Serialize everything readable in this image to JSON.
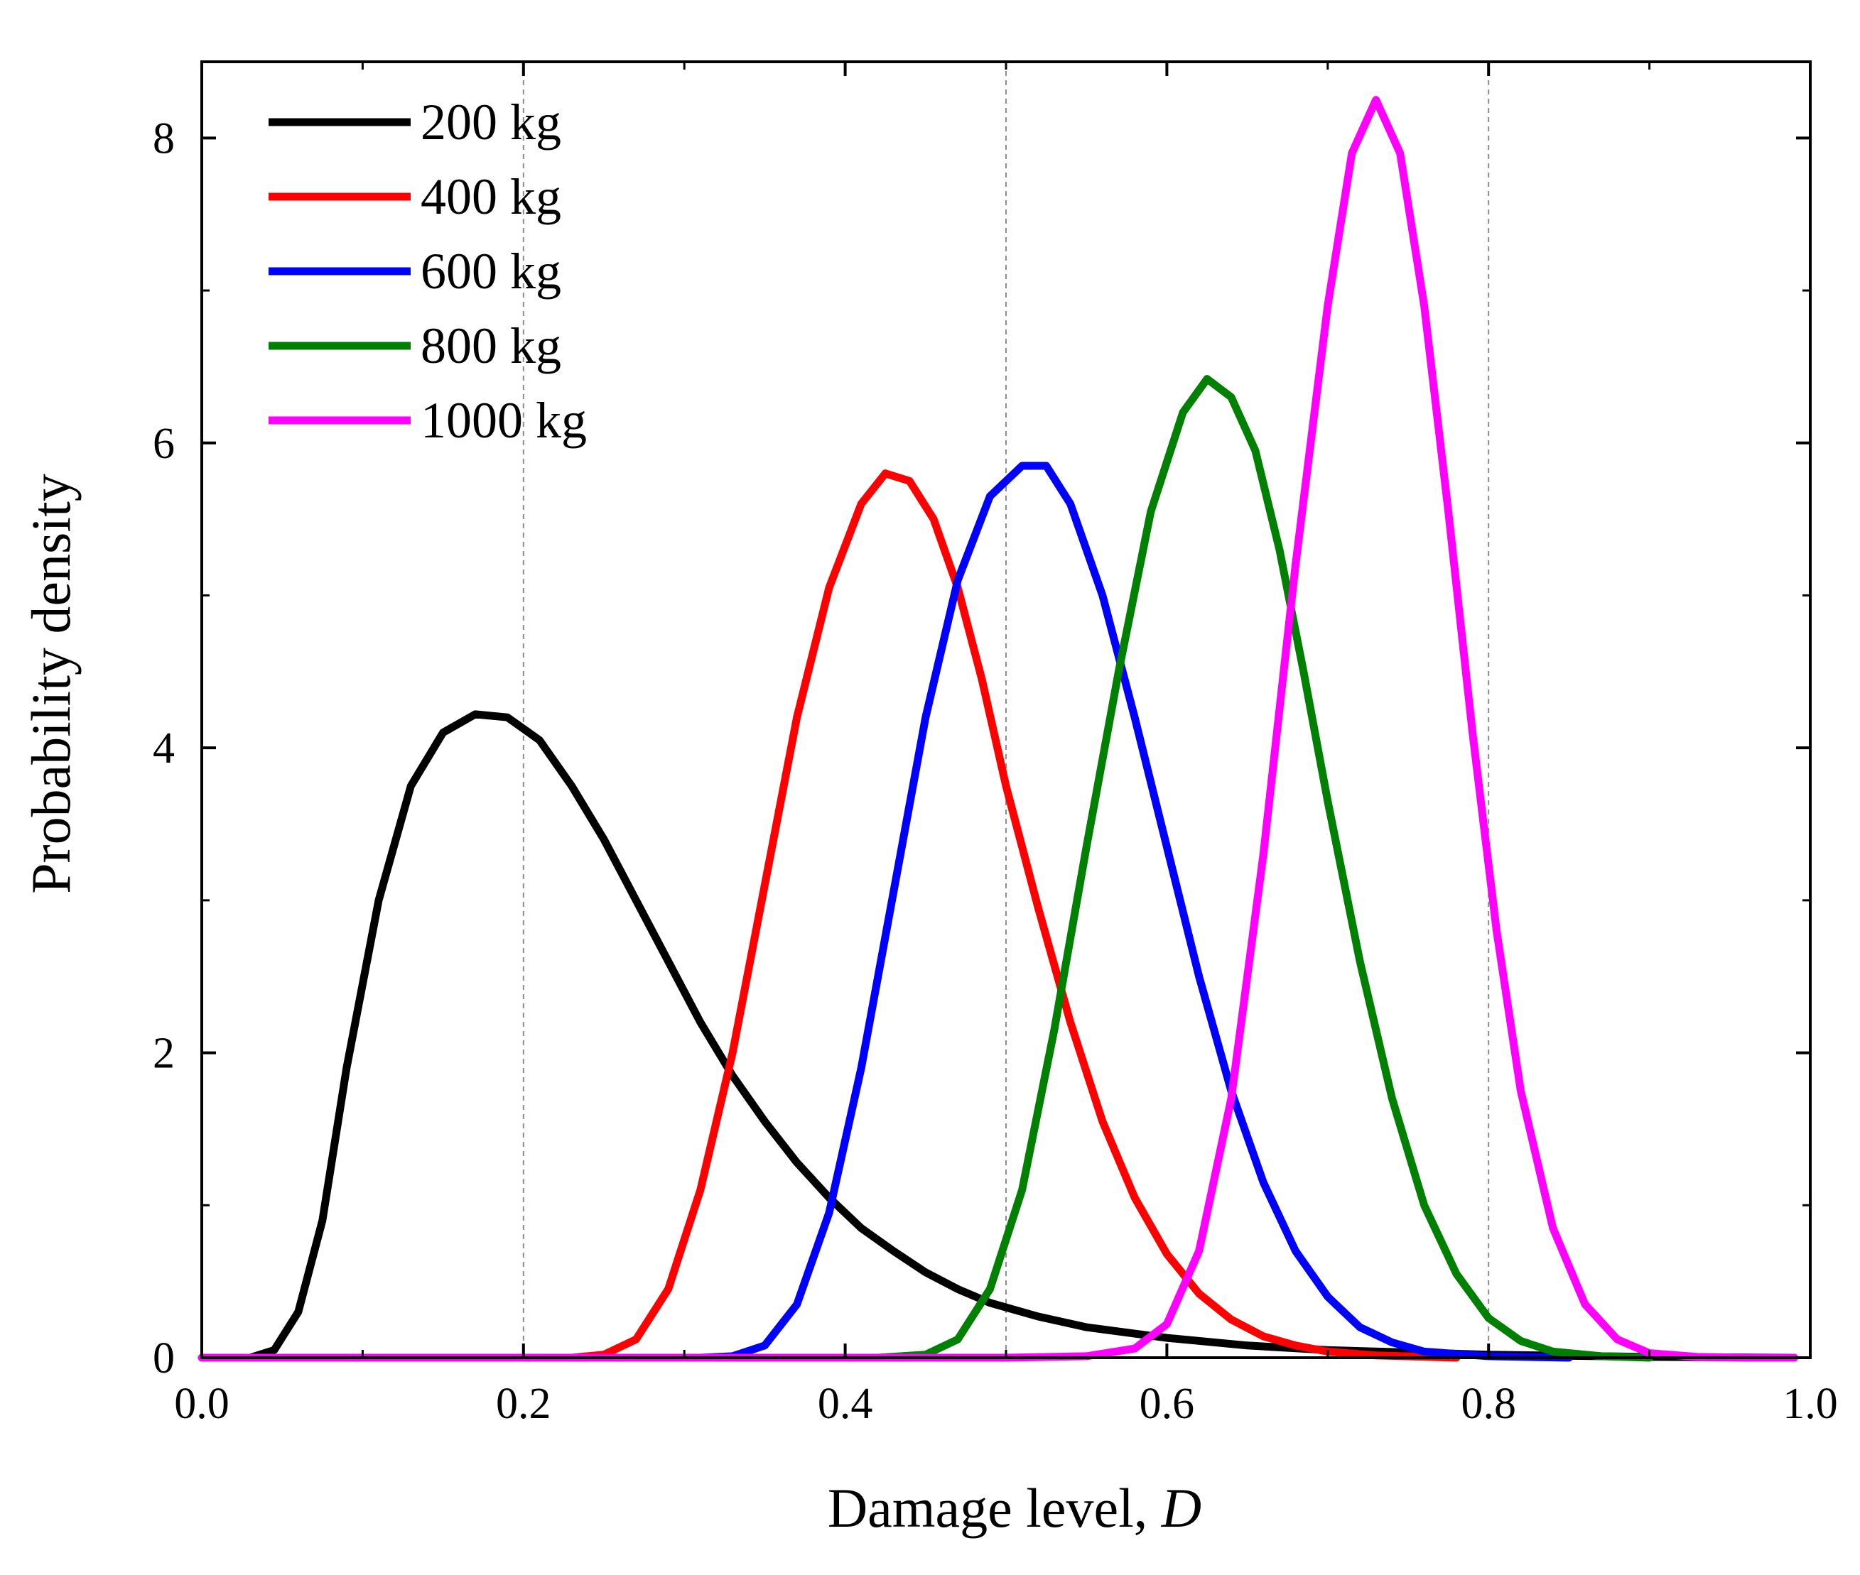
{
  "chart_data": {
    "type": "line",
    "title": "",
    "xlabel_text": "Damage level, ",
    "xlabel_var": "D",
    "ylabel": "Probability density",
    "xlim": [
      0.0,
      1.0
    ],
    "ylim": [
      0,
      8.5
    ],
    "x_ticks": [
      "0.0",
      "0.2",
      "0.4",
      "0.6",
      "0.8",
      "1.0"
    ],
    "y_ticks": [
      "0",
      "2",
      "4",
      "6",
      "8"
    ],
    "grid": "dashed vertical lines at x = 0.2, 0.5, 0.8",
    "grid_x": [
      0.2,
      0.5,
      0.8
    ],
    "legend_position": "top-left",
    "series": [
      {
        "name": "200 kg",
        "color": "#000000",
        "points": [
          [
            0.03,
            0
          ],
          [
            0.045,
            0.05
          ],
          [
            0.06,
            0.3
          ],
          [
            0.075,
            0.9
          ],
          [
            0.09,
            1.9
          ],
          [
            0.11,
            3.0
          ],
          [
            0.13,
            3.75
          ],
          [
            0.15,
            4.1
          ],
          [
            0.17,
            4.22
          ],
          [
            0.19,
            4.2
          ],
          [
            0.21,
            4.05
          ],
          [
            0.23,
            3.75
          ],
          [
            0.25,
            3.4
          ],
          [
            0.27,
            3.0
          ],
          [
            0.29,
            2.6
          ],
          [
            0.31,
            2.2
          ],
          [
            0.33,
            1.85
          ],
          [
            0.35,
            1.55
          ],
          [
            0.37,
            1.28
          ],
          [
            0.39,
            1.05
          ],
          [
            0.41,
            0.85
          ],
          [
            0.43,
            0.7
          ],
          [
            0.45,
            0.56
          ],
          [
            0.47,
            0.45
          ],
          [
            0.49,
            0.36
          ],
          [
            0.52,
            0.27
          ],
          [
            0.55,
            0.2
          ],
          [
            0.6,
            0.13
          ],
          [
            0.65,
            0.08
          ],
          [
            0.7,
            0.05
          ],
          [
            0.8,
            0.02
          ],
          [
            0.9,
            0.005
          ],
          [
            0.99,
            0
          ]
        ]
      },
      {
        "name": "400 kg",
        "color": "#ff0000",
        "points": [
          [
            0.23,
            0
          ],
          [
            0.25,
            0.02
          ],
          [
            0.27,
            0.12
          ],
          [
            0.29,
            0.45
          ],
          [
            0.31,
            1.1
          ],
          [
            0.33,
            2.0
          ],
          [
            0.35,
            3.1
          ],
          [
            0.37,
            4.2
          ],
          [
            0.39,
            5.05
          ],
          [
            0.41,
            5.6
          ],
          [
            0.425,
            5.8
          ],
          [
            0.44,
            5.75
          ],
          [
            0.455,
            5.5
          ],
          [
            0.47,
            5.05
          ],
          [
            0.485,
            4.45
          ],
          [
            0.5,
            3.75
          ],
          [
            0.52,
            2.95
          ],
          [
            0.54,
            2.2
          ],
          [
            0.56,
            1.55
          ],
          [
            0.58,
            1.05
          ],
          [
            0.6,
            0.68
          ],
          [
            0.62,
            0.42
          ],
          [
            0.64,
            0.25
          ],
          [
            0.66,
            0.14
          ],
          [
            0.68,
            0.08
          ],
          [
            0.7,
            0.04
          ],
          [
            0.73,
            0.015
          ],
          [
            0.78,
            0
          ]
        ]
      },
      {
        "name": "600 kg",
        "color": "#0000ff",
        "points": [
          [
            0.31,
            0
          ],
          [
            0.33,
            0.01
          ],
          [
            0.35,
            0.08
          ],
          [
            0.37,
            0.35
          ],
          [
            0.39,
            0.95
          ],
          [
            0.41,
            1.9
          ],
          [
            0.43,
            3.05
          ],
          [
            0.45,
            4.2
          ],
          [
            0.47,
            5.1
          ],
          [
            0.49,
            5.65
          ],
          [
            0.51,
            5.85
          ],
          [
            0.525,
            5.85
          ],
          [
            0.54,
            5.6
          ],
          [
            0.56,
            5.0
          ],
          [
            0.58,
            4.2
          ],
          [
            0.6,
            3.35
          ],
          [
            0.62,
            2.5
          ],
          [
            0.64,
            1.75
          ],
          [
            0.66,
            1.15
          ],
          [
            0.68,
            0.7
          ],
          [
            0.7,
            0.4
          ],
          [
            0.72,
            0.2
          ],
          [
            0.74,
            0.1
          ],
          [
            0.76,
            0.04
          ],
          [
            0.8,
            0.01
          ],
          [
            0.85,
            0
          ]
        ]
      },
      {
        "name": "800 kg",
        "color": "#008000",
        "points": [
          [
            0.42,
            0
          ],
          [
            0.45,
            0.02
          ],
          [
            0.47,
            0.12
          ],
          [
            0.49,
            0.45
          ],
          [
            0.51,
            1.1
          ],
          [
            0.53,
            2.15
          ],
          [
            0.55,
            3.35
          ],
          [
            0.57,
            4.5
          ],
          [
            0.59,
            5.55
          ],
          [
            0.61,
            6.2
          ],
          [
            0.625,
            6.42
          ],
          [
            0.64,
            6.3
          ],
          [
            0.655,
            5.95
          ],
          [
            0.67,
            5.3
          ],
          [
            0.685,
            4.5
          ],
          [
            0.7,
            3.65
          ],
          [
            0.72,
            2.6
          ],
          [
            0.74,
            1.7
          ],
          [
            0.76,
            1.0
          ],
          [
            0.78,
            0.55
          ],
          [
            0.8,
            0.26
          ],
          [
            0.82,
            0.11
          ],
          [
            0.84,
            0.04
          ],
          [
            0.87,
            0.01
          ],
          [
            0.9,
            0
          ]
        ]
      },
      {
        "name": "1000 kg",
        "color": "#ff00ff",
        "points": [
          [
            0.0,
            0
          ],
          [
            0.5,
            0
          ],
          [
            0.55,
            0.01
          ],
          [
            0.58,
            0.06
          ],
          [
            0.6,
            0.22
          ],
          [
            0.62,
            0.7
          ],
          [
            0.64,
            1.7
          ],
          [
            0.66,
            3.3
          ],
          [
            0.68,
            5.2
          ],
          [
            0.7,
            6.9
          ],
          [
            0.715,
            7.9
          ],
          [
            0.73,
            8.25
          ],
          [
            0.745,
            7.9
          ],
          [
            0.76,
            6.9
          ],
          [
            0.775,
            5.55
          ],
          [
            0.79,
            4.1
          ],
          [
            0.805,
            2.8
          ],
          [
            0.82,
            1.75
          ],
          [
            0.84,
            0.85
          ],
          [
            0.86,
            0.35
          ],
          [
            0.88,
            0.12
          ],
          [
            0.9,
            0.03
          ],
          [
            0.93,
            0.005
          ],
          [
            0.96,
            0
          ],
          [
            0.99,
            0
          ]
        ]
      }
    ]
  }
}
